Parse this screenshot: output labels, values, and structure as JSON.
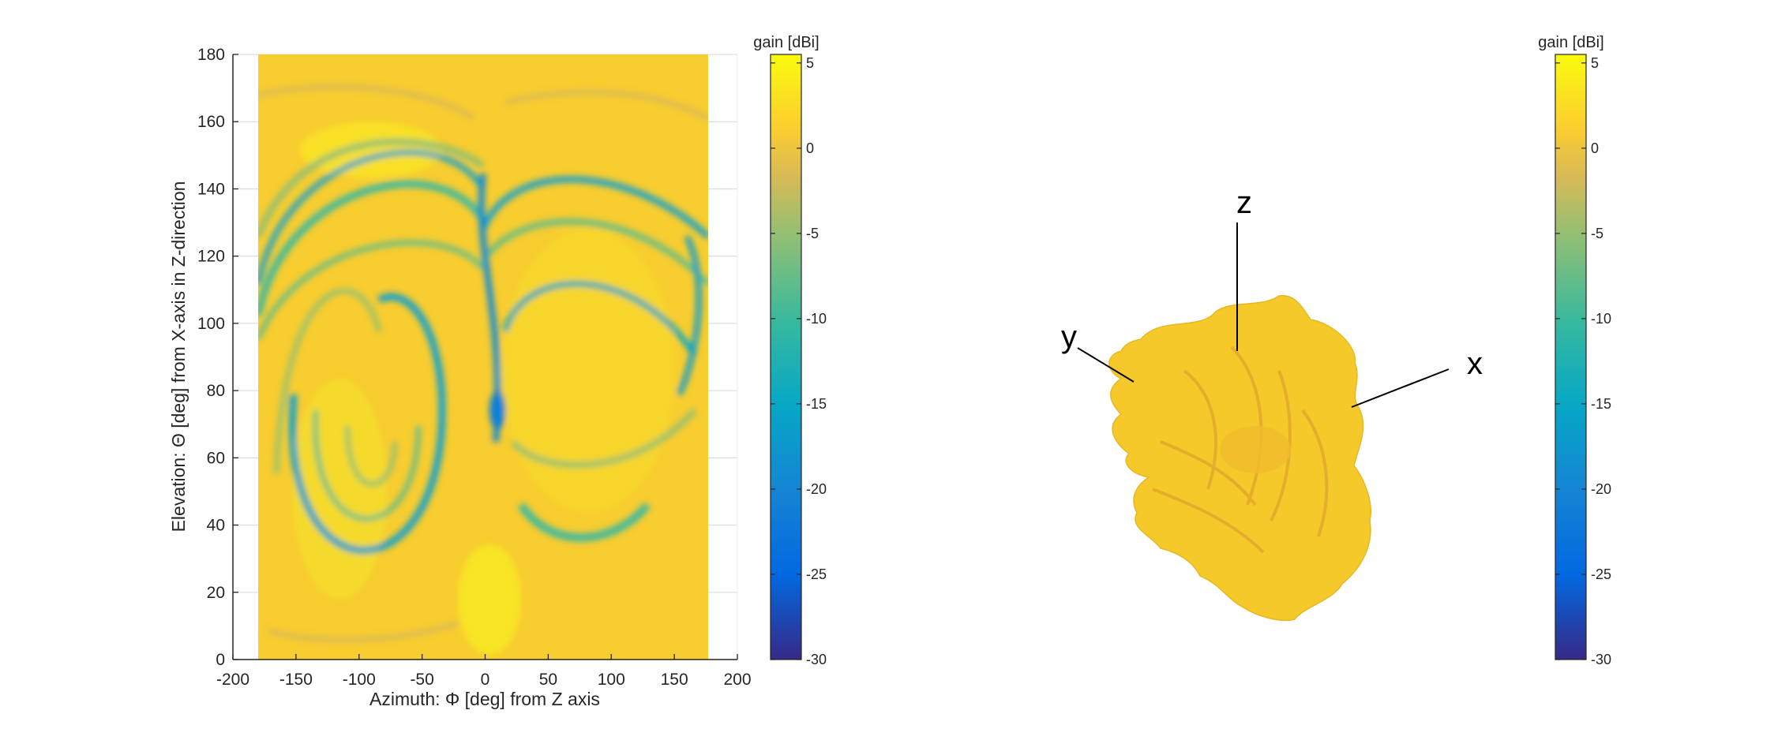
{
  "chart_data": [
    {
      "type": "heatmap",
      "title": "",
      "xlabel": "Azimuth: Φ [deg] from Z axis",
      "ylabel": "Elevation: Θ [deg] from X-axis in Z-direction",
      "xlim": [
        -200,
        200
      ],
      "ylim": [
        0,
        180
      ],
      "data_extent": {
        "x": [
          -180,
          180
        ],
        "y": [
          0,
          180
        ]
      },
      "x_ticks": [
        "-200",
        "-150",
        "-100",
        "-50",
        "0",
        "50",
        "100",
        "150",
        "200"
      ],
      "y_ticks": [
        "0",
        "20",
        "40",
        "60",
        "80",
        "100",
        "120",
        "140",
        "160",
        "180"
      ],
      "grid": true,
      "colorbar": {
        "title": "gain [dBi]",
        "range": [
          -30,
          5.5
        ],
        "ticks": [
          "5",
          "0",
          "-5",
          "-10",
          "-15",
          "-20",
          "-25",
          "-30"
        ],
        "colormap": "parula"
      },
      "value_range_shown": [
        -20,
        5
      ],
      "pattern_notes": "Mostly 0 to 5 dBi; lobed nulls (-10 to -20 dBi) forming two looped bands left and right of phi=0"
    },
    {
      "type": "other",
      "subtype": "3d-radiation-pattern",
      "axes_labels": [
        "z",
        "y",
        "x"
      ],
      "colorbar": {
        "title": "gain [dBi]",
        "range": [
          -30,
          5.5
        ],
        "ticks": [
          "5",
          "0",
          "-5",
          "-10",
          "-15",
          "-20",
          "-25",
          "-30"
        ],
        "colormap": "parula"
      }
    }
  ],
  "colors": {
    "parula_stops": [
      "#352a87",
      "#0268e1",
      "#1485d4",
      "#06a7c6",
      "#38b99e",
      "#92bf73",
      "#d9ba56",
      "#fcce2e",
      "#f9fb0e"
    ],
    "axis": "#262626",
    "grid": "#dfdfdf",
    "surface": "#f5c92a"
  }
}
